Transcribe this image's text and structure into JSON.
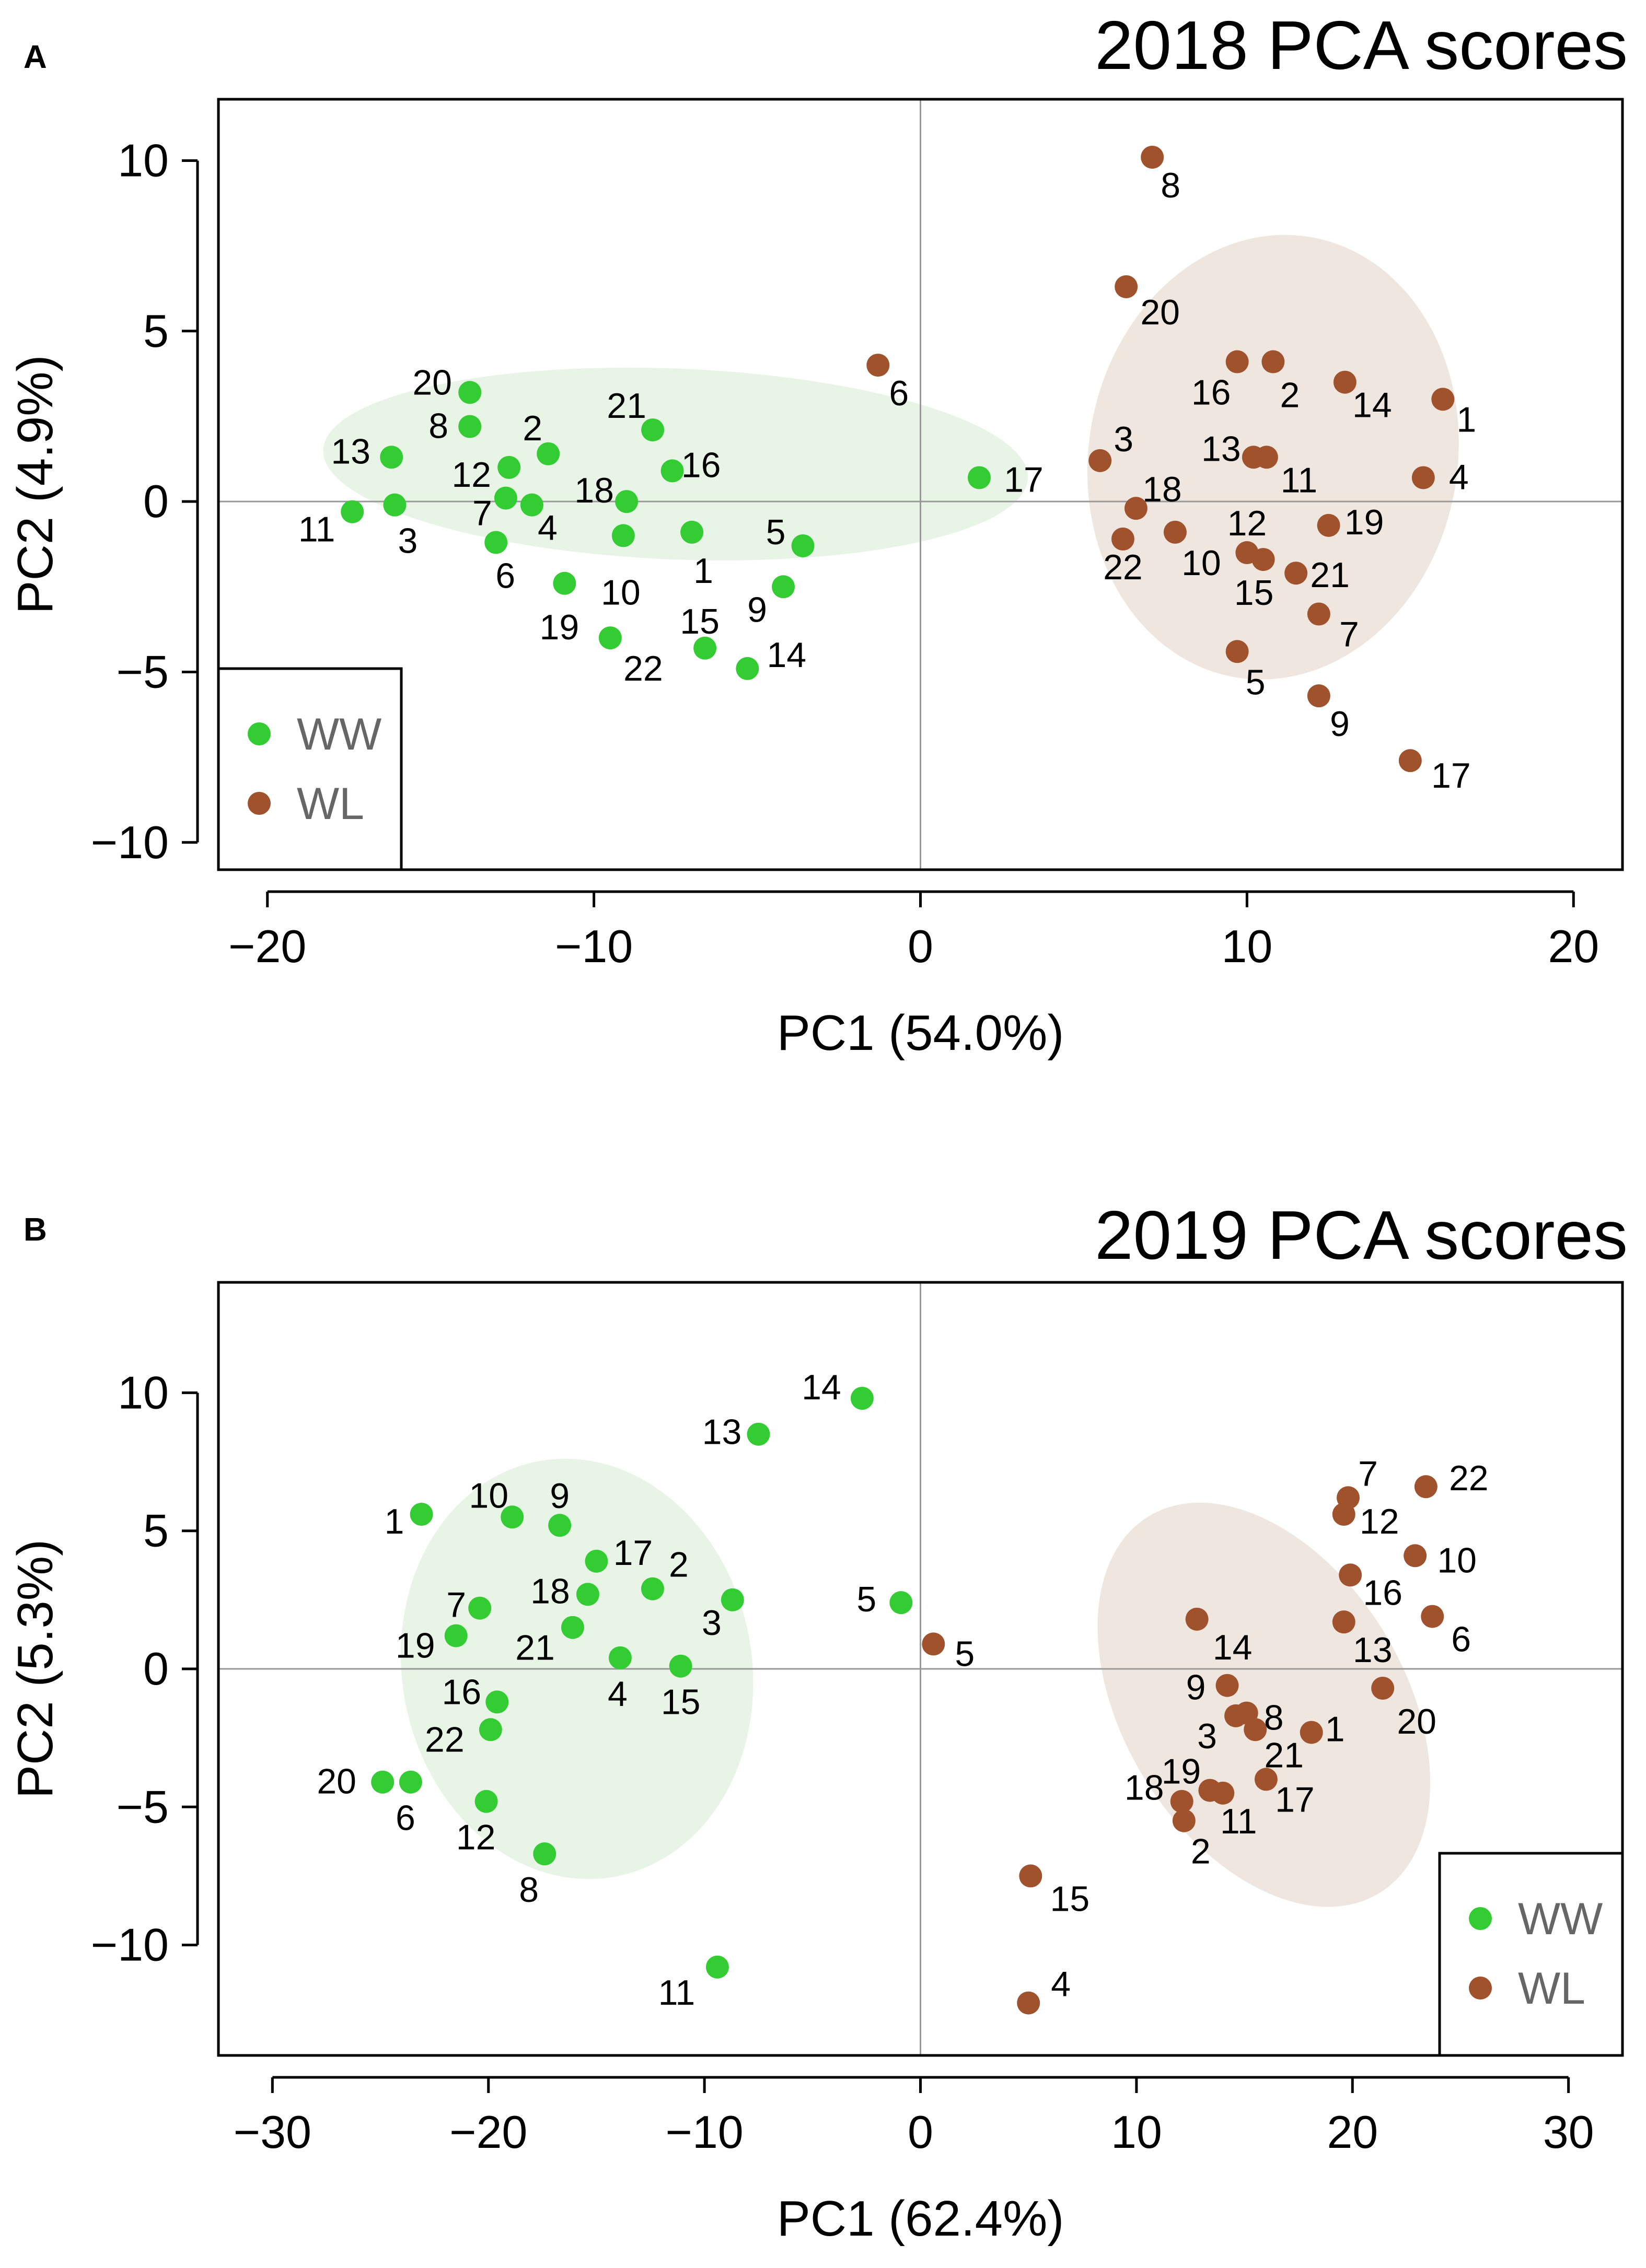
{
  "colors": {
    "ww": "#33cc33",
    "wl": "#a0522d",
    "ww_ellipse": "#e8f5e6",
    "wl_ellipse": "#efe6df",
    "axis": "#000000",
    "zero_line": "#999999",
    "legend_text": "#666666"
  },
  "chart_data": [
    {
      "panel_label": "A",
      "title": "2018 PCA scores",
      "type": "scatter",
      "xlabel": "PC1 (54.0%)",
      "ylabel": "PC2 (4.9%)",
      "xlim": [
        -21.5,
        21.5
      ],
      "ylim": [
        -10.8,
        11.8
      ],
      "xticks": [
        -20,
        -10,
        0,
        10,
        20
      ],
      "xtick_labels": [
        "−20",
        "−10",
        "0",
        "10",
        "20"
      ],
      "yticks": [
        -10,
        -5,
        0,
        5,
        10
      ],
      "ytick_labels": [
        "−10",
        "−5",
        "0",
        "5",
        "10"
      ],
      "legend": {
        "position": "bottom-left",
        "entries": [
          "WW",
          "WL"
        ]
      },
      "ellipses": [
        {
          "group": "WW",
          "cx": -7.5,
          "cy": 1.1,
          "rx": 21.6,
          "ry": 5.6,
          "rotate": -0.04
        },
        {
          "group": "WL",
          "cx": 10.8,
          "cy": 1.3,
          "rx": 11.3,
          "ry": 13.1,
          "rotate": -0.17
        }
      ],
      "series": [
        {
          "name": "WW",
          "points": [
            {
              "label": "20",
              "x": -13.8,
              "y": 3.2
            },
            {
              "label": "8",
              "x": -13.8,
              "y": 2.2
            },
            {
              "label": "2",
              "x": -11.4,
              "y": 1.4
            },
            {
              "label": "13",
              "x": -16.2,
              "y": 1.3
            },
            {
              "label": "12",
              "x": -12.6,
              "y": 1.0
            },
            {
              "label": "21",
              "x": -8.2,
              "y": 2.1
            },
            {
              "label": "16",
              "x": -7.6,
              "y": 0.9
            },
            {
              "label": "18",
              "x": -9.0,
              "y": 0.0
            },
            {
              "label": "7",
              "x": -12.7,
              "y": 0.1
            },
            {
              "label": "4",
              "x": -11.9,
              "y": -0.1
            },
            {
              "label": "3",
              "x": -16.1,
              "y": -0.1
            },
            {
              "label": "11",
              "x": -17.4,
              "y": -0.3
            },
            {
              "label": "1",
              "x": -7.0,
              "y": -0.9
            },
            {
              "label": "10",
              "x": -9.1,
              "y": -1.0
            },
            {
              "label": "6",
              "x": -13.0,
              "y": -1.2
            },
            {
              "label": "5",
              "x": -3.6,
              "y": -1.3
            },
            {
              "label": "19",
              "x": -10.9,
              "y": -2.4
            },
            {
              "label": "9",
              "x": -4.2,
              "y": -2.5
            },
            {
              "label": "22",
              "x": -9.5,
              "y": -4.0
            },
            {
              "label": "15",
              "x": -6.6,
              "y": -4.3
            },
            {
              "label": "14",
              "x": -5.3,
              "y": -4.9
            },
            {
              "label": "17",
              "x": 1.8,
              "y": 0.7
            }
          ]
        },
        {
          "name": "WL",
          "points": [
            {
              "label": "8",
              "x": 7.1,
              "y": 10.1
            },
            {
              "label": "20",
              "x": 6.3,
              "y": 6.3
            },
            {
              "label": "6",
              "x": -1.3,
              "y": 4.0
            },
            {
              "label": "16",
              "x": 9.7,
              "y": 4.1
            },
            {
              "label": "2",
              "x": 10.8,
              "y": 4.1
            },
            {
              "label": "14",
              "x": 13.0,
              "y": 3.5
            },
            {
              "label": "1",
              "x": 16.0,
              "y": 3.0
            },
            {
              "label": "3",
              "x": 5.5,
              "y": 1.2
            },
            {
              "label": "13",
              "x": 10.2,
              "y": 1.3
            },
            {
              "label": "11",
              "x": 10.6,
              "y": 1.3
            },
            {
              "label": "4",
              "x": 15.4,
              "y": 0.7
            },
            {
              "label": "18",
              "x": 6.6,
              "y": -0.2
            },
            {
              "label": "12",
              "x": 10.0,
              "y": -1.5
            },
            {
              "label": "19",
              "x": 12.5,
              "y": -0.7
            },
            {
              "label": "22",
              "x": 6.2,
              "y": -1.1
            },
            {
              "label": "10",
              "x": 7.8,
              "y": -0.9
            },
            {
              "label": "15",
              "x": 10.5,
              "y": -1.7
            },
            {
              "label": "21",
              "x": 11.5,
              "y": -2.1
            },
            {
              "label": "7",
              "x": 12.2,
              "y": -3.3
            },
            {
              "label": "5",
              "x": 9.7,
              "y": -4.4
            },
            {
              "label": "9",
              "x": 12.2,
              "y": -5.7
            },
            {
              "label": "17",
              "x": 15.0,
              "y": -7.6
            }
          ]
        }
      ]
    },
    {
      "panel_label": "B",
      "title": "2019 PCA scores",
      "type": "scatter",
      "xlabel": "PC1 (62.4%)",
      "ylabel": "PC2 (5.3%)",
      "xlim": [
        -32.5,
        32.5
      ],
      "ylim": [
        -14.0,
        14.0
      ],
      "xticks": [
        -30,
        -20,
        -10,
        0,
        10,
        20,
        30
      ],
      "xtick_labels": [
        "−30",
        "−20",
        "−10",
        "0",
        "10",
        "20",
        "30"
      ],
      "yticks": [
        -10,
        -5,
        0,
        5,
        10
      ],
      "ytick_labels": [
        "−10",
        "−5",
        "0",
        "5",
        "10"
      ],
      "legend": {
        "position": "bottom-right",
        "entries": [
          "WW",
          "WL"
        ]
      },
      "ellipses": [
        {
          "group": "WW",
          "cx": -15.9,
          "cy": 0.0,
          "rx": 16.2,
          "ry": 15.3,
          "rotate": 0.18
        },
        {
          "group": "WL",
          "cx": 15.9,
          "cy": -1.3,
          "rx": 13.0,
          "ry": 16.0,
          "rotate": 0.55
        }
      ],
      "series": [
        {
          "name": "WW",
          "points": [
            {
              "label": "14",
              "x": -2.7,
              "y": 9.8
            },
            {
              "label": "13",
              "x": -7.5,
              "y": 8.5
            },
            {
              "label": "1",
              "x": -23.1,
              "y": 5.6
            },
            {
              "label": "10",
              "x": -18.9,
              "y": 5.5
            },
            {
              "label": "9",
              "x": -16.7,
              "y": 5.2
            },
            {
              "label": "17",
              "x": -15.0,
              "y": 3.9
            },
            {
              "label": "2",
              "x": -12.4,
              "y": 2.9
            },
            {
              "label": "18",
              "x": -15.4,
              "y": 2.7
            },
            {
              "label": "3",
              "x": -8.7,
              "y": 2.5
            },
            {
              "label": "5",
              "x": -0.9,
              "y": 2.4
            },
            {
              "label": "7",
              "x": -20.4,
              "y": 2.2
            },
            {
              "label": "19",
              "x": -21.5,
              "y": 1.2
            },
            {
              "label": "21",
              "x": -16.1,
              "y": 1.5
            },
            {
              "label": "4",
              "x": -13.9,
              "y": 0.4
            },
            {
              "label": "15",
              "x": -11.1,
              "y": 0.1
            },
            {
              "label": "16",
              "x": -19.6,
              "y": -1.2
            },
            {
              "label": "22",
              "x": -19.9,
              "y": -2.2
            },
            {
              "label": "20",
              "x": -24.9,
              "y": -4.1
            },
            {
              "label": "6",
              "x": -23.6,
              "y": -4.1
            },
            {
              "label": "12",
              "x": -20.1,
              "y": -4.8
            },
            {
              "label": "8",
              "x": -17.4,
              "y": -6.7
            },
            {
              "label": "11",
              "x": -9.4,
              "y": -10.8
            }
          ]
        },
        {
          "name": "WL",
          "points": [
            {
              "label": "5",
              "x": 0.6,
              "y": 0.9
            },
            {
              "label": "7",
              "x": 19.8,
              "y": 6.2
            },
            {
              "label": "22",
              "x": 23.4,
              "y": 6.6
            },
            {
              "label": "12",
              "x": 19.6,
              "y": 5.6
            },
            {
              "label": "10",
              "x": 22.9,
              "y": 4.1
            },
            {
              "label": "16",
              "x": 19.9,
              "y": 3.4
            },
            {
              "label": "6",
              "x": 23.7,
              "y": 1.9
            },
            {
              "label": "14",
              "x": 12.8,
              "y": 1.8
            },
            {
              "label": "13",
              "x": 19.6,
              "y": 1.7
            },
            {
              "label": "9",
              "x": 14.2,
              "y": -0.6
            },
            {
              "label": "20",
              "x": 21.4,
              "y": -0.7
            },
            {
              "label": "8",
              "x": 15.1,
              "y": -1.6
            },
            {
              "label": "3",
              "x": 14.6,
              "y": -1.7
            },
            {
              "label": "21",
              "x": 15.5,
              "y": -2.2
            },
            {
              "label": "1",
              "x": 18.1,
              "y": -2.3
            },
            {
              "label": "19",
              "x": 13.4,
              "y": -4.4
            },
            {
              "label": "11",
              "x": 14.0,
              "y": -4.5
            },
            {
              "label": "17",
              "x": 16.0,
              "y": -4.0
            },
            {
              "label": "18",
              "x": 12.1,
              "y": -4.8
            },
            {
              "label": "2",
              "x": 12.2,
              "y": -5.5
            },
            {
              "label": "15",
              "x": 5.1,
              "y": -7.5
            },
            {
              "label": "4",
              "x": 5.0,
              "y": -12.1
            }
          ]
        }
      ]
    }
  ]
}
